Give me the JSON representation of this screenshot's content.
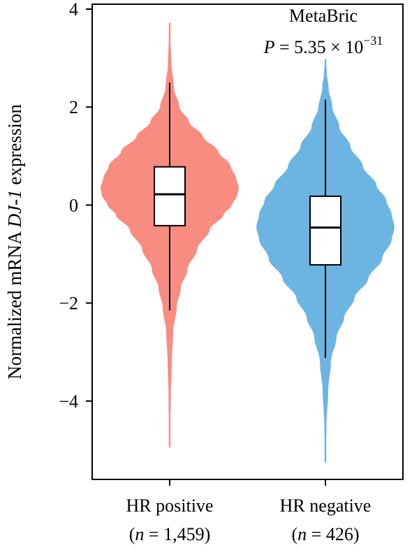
{
  "chart_data": {
    "type": "violin",
    "ylabel": {
      "prefix": "Normalized mRNA ",
      "gene": "DJ-1",
      "suffix": " expression"
    },
    "ylim": [
      -5.6,
      4.1
    ],
    "yticks": [
      {
        "value": 4,
        "label": "4"
      },
      {
        "value": 2,
        "label": "2"
      },
      {
        "value": 0,
        "label": "0"
      },
      {
        "value": -2,
        "label": "−2"
      },
      {
        "value": -4,
        "label": "−4"
      }
    ],
    "annotation": {
      "dataset": "MetaBric",
      "p_symbol": "P",
      "p_equals": " = 5.35 × 10",
      "p_exponent": "−31"
    },
    "categories": [
      {
        "name": "HR positive",
        "n_prefix": "(",
        "n_symbol": "n",
        "n_text": " = 1,459)",
        "color": "#f98c80",
        "box": {
          "q1": -0.42,
          "median": 0.22,
          "q3": 0.78,
          "whisker_low": -2.15,
          "whisker_high": 2.5
        },
        "range": [
          -4.95,
          3.72
        ],
        "density_profile": [
          [
            -4.95,
            0.005
          ],
          [
            -4.0,
            0.015
          ],
          [
            -3.2,
            0.03
          ],
          [
            -2.6,
            0.05
          ],
          [
            -2.1,
            0.1
          ],
          [
            -1.7,
            0.16
          ],
          [
            -1.3,
            0.26
          ],
          [
            -0.9,
            0.4
          ],
          [
            -0.5,
            0.58
          ],
          [
            -0.2,
            0.78
          ],
          [
            0.0,
            0.9
          ],
          [
            0.2,
            0.98
          ],
          [
            0.35,
            1.0
          ],
          [
            0.55,
            0.96
          ],
          [
            0.8,
            0.88
          ],
          [
            1.1,
            0.7
          ],
          [
            1.4,
            0.48
          ],
          [
            1.7,
            0.28
          ],
          [
            2.0,
            0.14
          ],
          [
            2.4,
            0.06
          ],
          [
            2.9,
            0.025
          ],
          [
            3.4,
            0.012
          ],
          [
            3.72,
            0.005
          ]
        ]
      },
      {
        "name": "HR negative",
        "n_prefix": "(",
        "n_symbol": "n",
        "n_text": " = 426)",
        "color": "#6cb4e2",
        "box": {
          "q1": -1.22,
          "median": -0.46,
          "q3": 0.18,
          "whisker_low": -3.12,
          "whisker_high": 2.15
        },
        "range": [
          -5.25,
          2.98
        ],
        "density_profile": [
          [
            -5.25,
            0.005
          ],
          [
            -4.5,
            0.015
          ],
          [
            -3.8,
            0.04
          ],
          [
            -3.2,
            0.08
          ],
          [
            -2.7,
            0.16
          ],
          [
            -2.3,
            0.27
          ],
          [
            -1.9,
            0.42
          ],
          [
            -1.5,
            0.62
          ],
          [
            -1.1,
            0.82
          ],
          [
            -0.7,
            0.96
          ],
          [
            -0.45,
            1.0
          ],
          [
            -0.2,
            0.96
          ],
          [
            0.1,
            0.88
          ],
          [
            0.4,
            0.74
          ],
          [
            0.8,
            0.54
          ],
          [
            1.2,
            0.36
          ],
          [
            1.6,
            0.2
          ],
          [
            2.0,
            0.1
          ],
          [
            2.4,
            0.045
          ],
          [
            2.7,
            0.02
          ],
          [
            2.98,
            0.005
          ]
        ]
      }
    ]
  }
}
